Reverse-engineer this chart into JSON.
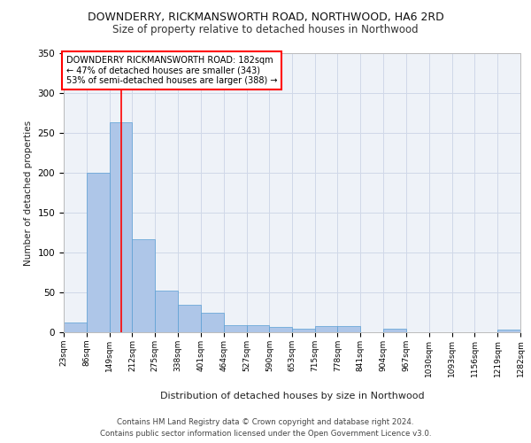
{
  "title1": "DOWNDERRY, RICKMANSWORTH ROAD, NORTHWOOD, HA6 2RD",
  "title2": "Size of property relative to detached houses in Northwood",
  "xlabel": "Distribution of detached houses by size in Northwood",
  "ylabel": "Number of detached properties",
  "bar_values": [
    12,
    200,
    263,
    117,
    52,
    35,
    24,
    9,
    9,
    7,
    4,
    8,
    8,
    0,
    4,
    0,
    0,
    0,
    0,
    3
  ],
  "bin_labels": [
    "23sqm",
    "86sqm",
    "149sqm",
    "212sqm",
    "275sqm",
    "338sqm",
    "401sqm",
    "464sqm",
    "527sqm",
    "590sqm",
    "653sqm",
    "715sqm",
    "778sqm",
    "841sqm",
    "904sqm",
    "967sqm",
    "1030sqm",
    "1093sqm",
    "1156sqm",
    "1219sqm",
    "1282sqm"
  ],
  "bin_edges": [
    23,
    86,
    149,
    212,
    275,
    338,
    401,
    464,
    527,
    590,
    653,
    715,
    778,
    841,
    904,
    967,
    1030,
    1093,
    1156,
    1219,
    1282
  ],
  "bar_color": "#aec6e8",
  "bar_edge_color": "#5a9fd4",
  "red_line_x": 182,
  "ylim": [
    0,
    350
  ],
  "yticks": [
    0,
    50,
    100,
    150,
    200,
    250,
    300,
    350
  ],
  "annotation_title": "DOWNDERRY RICKMANSWORTH ROAD: 182sqm",
  "annotation_line1": "← 47% of detached houses are smaller (343)",
  "annotation_line2": "53% of semi-detached houses are larger (388) →",
  "grid_color": "#d0d8e8",
  "background_color": "#eef2f8",
  "footer_line1": "Contains HM Land Registry data © Crown copyright and database right 2024.",
  "footer_line2": "Contains public sector information licensed under the Open Government Licence v3.0."
}
